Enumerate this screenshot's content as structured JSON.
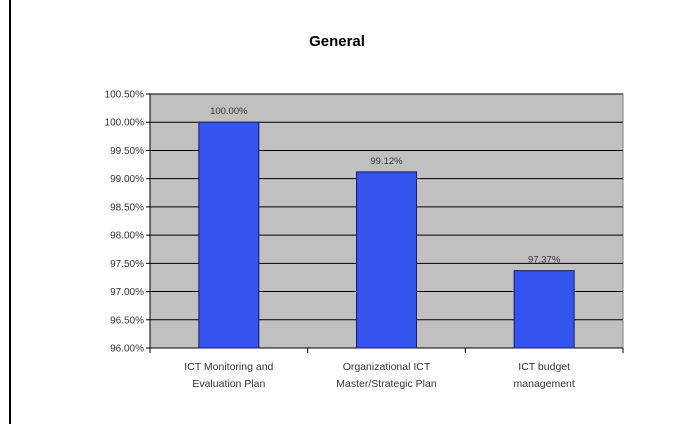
{
  "chart_data": {
    "type": "bar",
    "title": "General",
    "xlabel": "",
    "ylabel": "",
    "categories": [
      [
        "ICT Monitoring and",
        "Evaluation Plan"
      ],
      [
        "Organizational ICT",
        "Master/Strategic Plan"
      ],
      [
        "ICT budget",
        "management"
      ]
    ],
    "values": [
      100.0,
      99.12,
      97.37
    ],
    "data_labels": [
      "100.00%",
      "99.12%",
      "97.37%"
    ],
    "ylim": [
      96.0,
      100.5
    ],
    "y_ticks": [
      "96.00%",
      "96.50%",
      "97.00%",
      "97.50%",
      "98.00%",
      "98.50%",
      "99.00%",
      "99.50%",
      "100.00%",
      "100.50%"
    ],
    "y_tick_values": [
      96.0,
      96.5,
      97.0,
      97.5,
      98.0,
      98.5,
      99.0,
      99.5,
      100.0,
      100.5
    ],
    "grid": true,
    "legend": "none",
    "colors": {
      "bar": "#3355ee",
      "bar_border": "#1a1a66",
      "plot_bg": "#c0c0c0",
      "grid": "#000000"
    }
  }
}
